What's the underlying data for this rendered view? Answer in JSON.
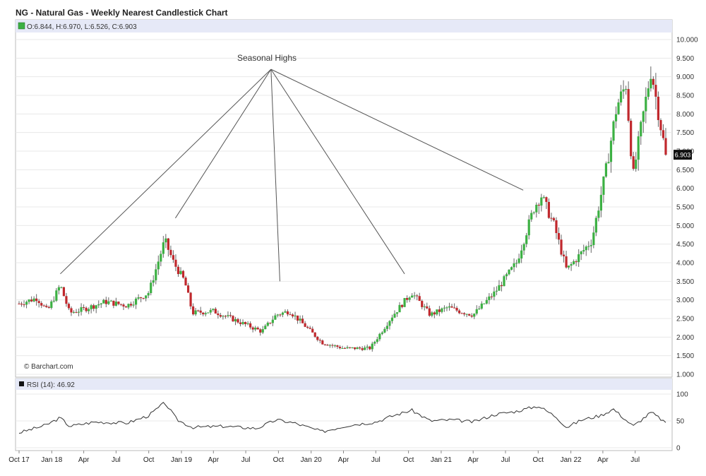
{
  "header": {
    "title": "NG - Natural Gas - Weekly Nearest Candlestick Chart",
    "ohlc_text": "O:6.844, H:6.970, L:6.526, C:6.903",
    "watermark": "© Barchart.com",
    "rsi_text": "RSI (14): 46.92",
    "annotation": "Seasonal Highs",
    "last_price_label": "6.903"
  },
  "colors": {
    "up": "#3cb043",
    "down": "#c0282d",
    "wick": "#666666",
    "header_band": "#e6e9f7",
    "grid": "#e8e8e8"
  },
  "chart_data": [
    {
      "type": "candlestick",
      "title": "NG - Natural Gas - Weekly Nearest Candlestick Chart",
      "ylim": [
        1.0,
        10.0
      ],
      "yticks": [
        "10.000",
        "9.500",
        "9.000",
        "8.500",
        "8.000",
        "7.500",
        "7.000",
        "6.500",
        "6.000",
        "5.500",
        "5.000",
        "4.500",
        "4.000",
        "3.500",
        "3.000",
        "2.500",
        "2.000",
        "1.500",
        "1.000"
      ],
      "xlim": [
        "2017-10-01",
        "2022-10-01"
      ],
      "xticks": [
        {
          "date": "2017-10-01",
          "label": "Oct 17"
        },
        {
          "date": "2018-01-01",
          "label": "Jan 18"
        },
        {
          "date": "2018-04-01",
          "label": "Apr"
        },
        {
          "date": "2018-07-01",
          "label": "Jul"
        },
        {
          "date": "2018-10-01",
          "label": "Oct"
        },
        {
          "date": "2019-01-01",
          "label": "Jan 19"
        },
        {
          "date": "2019-04-01",
          "label": "Apr"
        },
        {
          "date": "2019-07-01",
          "label": "Jul"
        },
        {
          "date": "2019-10-01",
          "label": "Oct"
        },
        {
          "date": "2020-01-01",
          "label": "Jan 20"
        },
        {
          "date": "2020-04-01",
          "label": "Apr"
        },
        {
          "date": "2020-07-01",
          "label": "Jul"
        },
        {
          "date": "2020-10-01",
          "label": "Oct"
        },
        {
          "date": "2021-01-01",
          "label": "Jan 21"
        },
        {
          "date": "2021-04-01",
          "label": "Apr"
        },
        {
          "date": "2021-07-01",
          "label": "Jul"
        },
        {
          "date": "2021-10-01",
          "label": "Oct"
        },
        {
          "date": "2022-01-01",
          "label": "Jan 22"
        },
        {
          "date": "2022-04-01",
          "label": "Apr"
        },
        {
          "date": "2022-07-01",
          "label": "Jul"
        }
      ],
      "close_path": [
        {
          "date": "2017-10-01",
          "value": 2.9
        },
        {
          "date": "2017-11-20",
          "value": 3.05
        },
        {
          "date": "2017-12-20",
          "value": 2.7
        },
        {
          "date": "2018-01-25",
          "value": 3.4
        },
        {
          "date": "2018-02-20",
          "value": 2.65
        },
        {
          "date": "2018-04-01",
          "value": 2.75
        },
        {
          "date": "2018-06-01",
          "value": 2.95
        },
        {
          "date": "2018-08-01",
          "value": 2.85
        },
        {
          "date": "2018-10-01",
          "value": 3.2
        },
        {
          "date": "2018-11-15",
          "value": 4.6
        },
        {
          "date": "2018-12-10",
          "value": 4.0
        },
        {
          "date": "2019-01-10",
          "value": 3.5
        },
        {
          "date": "2019-02-01",
          "value": 2.65
        },
        {
          "date": "2019-04-01",
          "value": 2.7
        },
        {
          "date": "2019-06-15",
          "value": 2.4
        },
        {
          "date": "2019-08-15",
          "value": 2.15
        },
        {
          "date": "2019-09-25",
          "value": 2.6
        },
        {
          "date": "2019-11-01",
          "value": 2.7
        },
        {
          "date": "2019-12-15",
          "value": 2.3
        },
        {
          "date": "2020-02-01",
          "value": 1.85
        },
        {
          "date": "2020-04-01",
          "value": 1.7
        },
        {
          "date": "2020-06-15",
          "value": 1.7
        },
        {
          "date": "2020-08-15",
          "value": 2.55
        },
        {
          "date": "2020-10-10",
          "value": 3.2
        },
        {
          "date": "2020-12-01",
          "value": 2.6
        },
        {
          "date": "2021-01-20",
          "value": 2.8
        },
        {
          "date": "2021-02-20",
          "value": 2.7
        },
        {
          "date": "2021-04-01",
          "value": 2.6
        },
        {
          "date": "2021-06-01",
          "value": 3.2
        },
        {
          "date": "2021-08-01",
          "value": 4.0
        },
        {
          "date": "2021-09-20",
          "value": 5.5
        },
        {
          "date": "2021-10-10",
          "value": 5.8
        },
        {
          "date": "2021-11-15",
          "value": 5.0
        },
        {
          "date": "2021-12-20",
          "value": 3.8
        },
        {
          "date": "2022-01-25",
          "value": 4.2
        },
        {
          "date": "2022-03-01",
          "value": 4.6
        },
        {
          "date": "2022-04-10",
          "value": 6.5
        },
        {
          "date": "2022-05-10",
          "value": 8.2
        },
        {
          "date": "2022-06-05",
          "value": 8.8
        },
        {
          "date": "2022-06-25",
          "value": 6.3
        },
        {
          "date": "2022-07-15",
          "value": 7.5
        },
        {
          "date": "2022-08-15",
          "value": 9.2
        },
        {
          "date": "2022-09-05",
          "value": 8.0
        },
        {
          "date": "2022-09-25",
          "value": 6.903
        }
      ],
      "annotation_targets": [
        {
          "date": "2018-01-25",
          "value": 3.7
        },
        {
          "date": "2018-12-15",
          "value": 5.2
        },
        {
          "date": "2019-10-05",
          "value": 3.5
        },
        {
          "date": "2020-09-20",
          "value": 3.7
        },
        {
          "date": "2021-08-20",
          "value": 5.95
        }
      ],
      "annotation_origin": {
        "date": "2019-09-10",
        "value": 9.2
      }
    },
    {
      "type": "line",
      "title": "RSI (14): 46.92",
      "ylim": [
        0,
        100
      ],
      "yticks": [
        "100",
        "50",
        "0"
      ],
      "points": [
        {
          "date": "2017-10-01",
          "value": 28
        },
        {
          "date": "2017-12-15",
          "value": 42
        },
        {
          "date": "2018-01-25",
          "value": 56
        },
        {
          "date": "2018-02-20",
          "value": 40
        },
        {
          "date": "2018-05-01",
          "value": 48
        },
        {
          "date": "2018-08-01",
          "value": 46
        },
        {
          "date": "2018-10-01",
          "value": 60
        },
        {
          "date": "2018-11-15",
          "value": 84
        },
        {
          "date": "2018-12-20",
          "value": 52
        },
        {
          "date": "2019-02-01",
          "value": 38
        },
        {
          "date": "2019-05-01",
          "value": 40
        },
        {
          "date": "2019-08-01",
          "value": 36
        },
        {
          "date": "2019-09-25",
          "value": 52
        },
        {
          "date": "2019-11-15",
          "value": 46
        },
        {
          "date": "2020-02-01",
          "value": 30
        },
        {
          "date": "2020-04-15",
          "value": 42
        },
        {
          "date": "2020-07-01",
          "value": 48
        },
        {
          "date": "2020-08-20",
          "value": 60
        },
        {
          "date": "2020-10-10",
          "value": 70
        },
        {
          "date": "2020-12-01",
          "value": 50
        },
        {
          "date": "2021-02-01",
          "value": 52
        },
        {
          "date": "2021-04-01",
          "value": 48
        },
        {
          "date": "2021-06-01",
          "value": 62
        },
        {
          "date": "2021-08-01",
          "value": 68
        },
        {
          "date": "2021-10-01",
          "value": 78
        },
        {
          "date": "2021-11-20",
          "value": 58
        },
        {
          "date": "2021-12-20",
          "value": 38
        },
        {
          "date": "2022-02-01",
          "value": 52
        },
        {
          "date": "2022-03-25",
          "value": 60
        },
        {
          "date": "2022-05-01",
          "value": 72
        },
        {
          "date": "2022-06-25",
          "value": 40
        },
        {
          "date": "2022-08-15",
          "value": 66
        },
        {
          "date": "2022-09-25",
          "value": 46.92
        }
      ]
    }
  ]
}
